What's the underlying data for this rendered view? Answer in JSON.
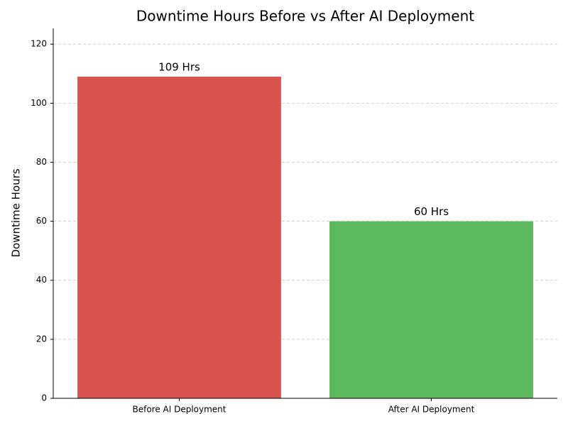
{
  "chart_data": {
    "type": "bar",
    "title": "Downtime Hours Before vs After AI Deployment",
    "y_label": "Downtime Hours",
    "categories": [
      "Before AI Deployment",
      "After AI Deployment"
    ],
    "values": [
      109,
      60
    ],
    "value_labels": [
      "109 Hrs",
      "60 Hrs"
    ],
    "colors": [
      "#d9534f",
      "#5cb85c"
    ],
    "ylim": [
      0,
      125.35
    ],
    "yticks": [
      0,
      20,
      40,
      60,
      80,
      100,
      120
    ],
    "grid": true
  }
}
